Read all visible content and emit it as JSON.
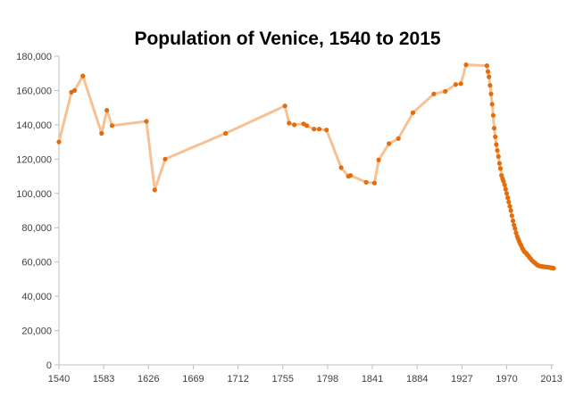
{
  "chart_data": {
    "type": "line",
    "title": "Population of Venice, 1540 to 2015",
    "xlabel": "",
    "ylabel": "",
    "xlim": [
      1540,
      2015
    ],
    "ylim": [
      0,
      180000
    ],
    "x_ticks": [
      "1540",
      "1583",
      "1626",
      "1669",
      "1712",
      "1755",
      "1798",
      "1841",
      "1884",
      "1927",
      "1970",
      "2013"
    ],
    "y_ticks": [
      "0",
      "20,000",
      "40,000",
      "60,000",
      "80,000",
      "100,000",
      "120,000",
      "140,000",
      "160,000",
      "180,000"
    ],
    "grid": false,
    "legend": "none",
    "colors": {
      "line": "#f8c193",
      "marker": "#e46c0a",
      "axis": "#bfbfbf"
    },
    "series": [
      {
        "x": [
          1540,
          1552,
          1555,
          1563,
          1581,
          1586,
          1591,
          1624,
          1632,
          1642,
          1700,
          1757,
          1761,
          1766,
          1775,
          1778,
          1785,
          1790,
          1797,
          1811,
          1818,
          1820,
          1835,
          1843,
          1847,
          1857,
          1866,
          1880,
          1900,
          1911,
          1921,
          1926,
          1931,
          1951,
          1952,
          1953,
          1954,
          1955,
          1956,
          1957,
          1958,
          1959,
          1960,
          1961,
          1962,
          1963,
          1964,
          1965,
          1966,
          1967,
          1968,
          1969,
          1970,
          1971,
          1972,
          1973,
          1974,
          1975,
          1976,
          1977,
          1978,
          1979,
          1980,
          1981,
          1982,
          1983,
          1984,
          1985,
          1986,
          1987,
          1988,
          1989,
          1990,
          1991,
          1992,
          1993,
          1994,
          1995,
          1996,
          1997,
          1998,
          1999,
          2000,
          2001,
          2002,
          2003,
          2004,
          2005,
          2006,
          2007,
          2008,
          2009,
          2010,
          2011,
          2012,
          2013,
          2014,
          2015
        ],
        "y": [
          130000,
          159000,
          160000,
          168500,
          135000,
          148500,
          139500,
          142000,
          102000,
          120000,
          135000,
          151000,
          141000,
          140000,
          140500,
          139500,
          137500,
          137500,
          137000,
          115000,
          110000,
          110500,
          106500,
          106000,
          119500,
          129000,
          132000,
          147000,
          158000,
          159500,
          163500,
          164000,
          175000,
          174500,
          171000,
          168000,
          163000,
          158000,
          152000,
          145500,
          138000,
          133000,
          128500,
          125000,
          121500,
          117500,
          114500,
          110500,
          108500,
          107000,
          105000,
          102500,
          100000,
          97500,
          95000,
          92500,
          90000,
          87000,
          84000,
          81500,
          79500,
          77000,
          75000,
          73500,
          72000,
          70500,
          69500,
          68000,
          67000,
          66000,
          65500,
          65000,
          64000,
          63500,
          62500,
          62000,
          61000,
          60500,
          60000,
          59500,
          59000,
          58500,
          58000,
          57800,
          57600,
          57500,
          57400,
          57300,
          57200,
          57100,
          57000,
          57000,
          56900,
          56800,
          56700,
          56600,
          56500,
          56400
        ]
      }
    ]
  }
}
